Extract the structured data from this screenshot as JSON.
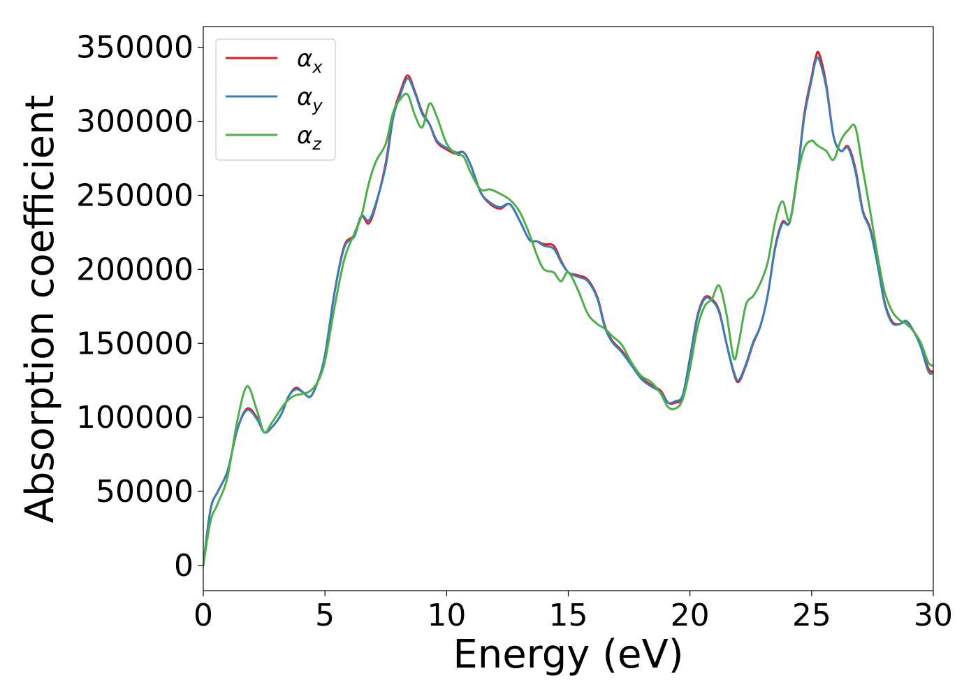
{
  "chart_data": {
    "type": "line",
    "title": "",
    "xlabel": "Energy (eV)",
    "ylabel": "Absorption coefficient",
    "xlim": [
      0,
      30
    ],
    "ylim": [
      -17000,
      364000
    ],
    "xticks": [
      0,
      5,
      10,
      15,
      20,
      25,
      30
    ],
    "yticks": [
      0,
      50000,
      100000,
      150000,
      200000,
      250000,
      300000,
      350000
    ],
    "grid": false,
    "legend": "top-left",
    "series": [
      {
        "name": "αx",
        "sym": "α",
        "sub": "x",
        "color": "#e41a1c",
        "x": [
          0,
          0.3,
          0.6,
          1.0,
          1.4,
          1.8,
          2.2,
          2.5,
          2.8,
          3.2,
          3.5,
          3.8,
          4.1,
          4.4,
          4.7,
          5.0,
          5.4,
          5.8,
          6.2,
          6.5,
          6.8,
          7.1,
          7.5,
          7.8,
          8.1,
          8.4,
          8.7,
          9.0,
          9.3,
          9.6,
          10.0,
          10.4,
          10.7,
          11.0,
          11.4,
          11.8,
          12.2,
          12.6,
          13.0,
          13.4,
          13.7,
          14.0,
          14.4,
          14.7,
          15.0,
          15.4,
          15.8,
          16.2,
          16.5,
          16.8,
          17.2,
          17.6,
          18.0,
          18.4,
          18.8,
          19.1,
          19.4,
          19.7,
          20.0,
          20.3,
          20.6,
          20.9,
          21.2,
          21.5,
          21.8,
          22.0,
          22.3,
          22.6,
          22.9,
          23.2,
          23.5,
          23.8,
          24.1,
          24.4,
          24.7,
          25.0,
          25.15,
          25.3,
          25.6,
          25.9,
          26.2,
          26.5,
          26.8,
          27.1,
          27.4,
          27.7,
          28.0,
          28.3,
          28.6,
          28.9,
          29.2,
          29.5,
          29.8,
          30.0
        ],
        "y": [
          0,
          38000,
          50000,
          64000,
          92000,
          106000,
          100000,
          90000,
          93000,
          102000,
          114000,
          120000,
          117000,
          114000,
          124000,
          142000,
          185000,
          216000,
          223000,
          236000,
          231000,
          244000,
          272000,
          304000,
          320000,
          331000,
          320000,
          306000,
          298000,
          286000,
          281000,
          278000,
          279000,
          270000,
          252000,
          244000,
          241000,
          244000,
          233000,
          220000,
          219000,
          217000,
          216000,
          206000,
          198000,
          196000,
          193000,
          181000,
          162000,
          152000,
          145000,
          136000,
          127000,
          122000,
          118000,
          110000,
          110000,
          114000,
          140000,
          168000,
          181000,
          180000,
          172000,
          150000,
          130000,
          124000,
          135000,
          150000,
          162000,
          183000,
          215000,
          232000,
          232000,
          262000,
          305000,
          330000,
          342000,
          346000,
          325000,
          290000,
          280000,
          283000,
          268000,
          240000,
          228000,
          205000,
          178000,
          165000,
          163000,
          165000,
          158000,
          148000,
          133000,
          131000
        ]
      },
      {
        "name": "αy",
        "sym": "α",
        "sub": "y",
        "color": "#377eb8",
        "x": [
          0,
          0.3,
          0.6,
          1.0,
          1.4,
          1.8,
          2.2,
          2.5,
          2.8,
          3.2,
          3.5,
          3.8,
          4.1,
          4.4,
          4.7,
          5.0,
          5.4,
          5.8,
          6.2,
          6.5,
          6.8,
          7.1,
          7.5,
          7.8,
          8.1,
          8.4,
          8.7,
          9.0,
          9.3,
          9.6,
          10.0,
          10.4,
          10.7,
          11.0,
          11.4,
          11.8,
          12.2,
          12.6,
          13.0,
          13.4,
          13.7,
          14.0,
          14.4,
          14.7,
          15.0,
          15.4,
          15.8,
          16.2,
          16.5,
          16.8,
          17.2,
          17.6,
          18.0,
          18.4,
          18.8,
          19.1,
          19.4,
          19.7,
          20.0,
          20.3,
          20.6,
          20.9,
          21.2,
          21.5,
          21.8,
          22.0,
          22.3,
          22.6,
          22.9,
          23.2,
          23.5,
          23.8,
          24.1,
          24.4,
          24.7,
          25.0,
          25.15,
          25.3,
          25.6,
          25.9,
          26.2,
          26.5,
          26.8,
          27.1,
          27.4,
          27.7,
          28.0,
          28.3,
          28.6,
          28.9,
          29.2,
          29.5,
          29.8,
          30.0
        ],
        "y": [
          0,
          38000,
          50000,
          64000,
          92000,
          105000,
          99000,
          90000,
          93000,
          102000,
          114000,
          119000,
          117000,
          114000,
          124000,
          142000,
          185000,
          215000,
          222000,
          236000,
          233000,
          245000,
          270000,
          302000,
          318000,
          329000,
          319000,
          305000,
          298000,
          287000,
          282000,
          279000,
          279000,
          270000,
          252000,
          245000,
          242000,
          244000,
          233000,
          220000,
          219000,
          216000,
          214000,
          205000,
          198000,
          195000,
          192000,
          180000,
          161000,
          151000,
          144000,
          135000,
          126000,
          121000,
          117000,
          110000,
          111000,
          115000,
          140000,
          167000,
          180000,
          179000,
          171000,
          150000,
          131000,
          125000,
          136000,
          151000,
          162000,
          183000,
          214000,
          231000,
          232000,
          262000,
          303000,
          328000,
          340000,
          342000,
          323000,
          290000,
          280000,
          282000,
          266000,
          239000,
          227000,
          204000,
          177000,
          164000,
          163000,
          165000,
          158000,
          147000,
          131000,
          130000
        ]
      },
      {
        "name": "αz",
        "sym": "α",
        "sub": "z",
        "color": "#4daf4a",
        "x": [
          0,
          0.3,
          0.6,
          1.0,
          1.4,
          1.8,
          2.2,
          2.5,
          2.8,
          3.2,
          3.5,
          3.8,
          4.1,
          4.4,
          4.7,
          5.0,
          5.4,
          5.8,
          6.2,
          6.5,
          6.8,
          7.1,
          7.5,
          7.8,
          8.1,
          8.4,
          8.7,
          9.0,
          9.3,
          9.6,
          10.0,
          10.4,
          10.7,
          11.0,
          11.4,
          11.8,
          12.2,
          12.6,
          13.0,
          13.4,
          13.7,
          14.0,
          14.4,
          14.7,
          15.0,
          15.4,
          15.8,
          16.2,
          16.5,
          16.8,
          17.2,
          17.6,
          18.0,
          18.4,
          18.8,
          19.1,
          19.4,
          19.7,
          20.0,
          20.3,
          20.6,
          20.9,
          21.2,
          21.5,
          21.8,
          22.0,
          22.3,
          22.6,
          22.9,
          23.2,
          23.5,
          23.8,
          24.1,
          24.4,
          24.7,
          25.0,
          25.15,
          25.3,
          25.6,
          25.9,
          26.2,
          26.5,
          26.8,
          27.1,
          27.4,
          27.7,
          28.0,
          28.3,
          28.6,
          28.9,
          29.2,
          29.5,
          29.8,
          30.0
        ],
        "y": [
          0,
          30000,
          42000,
          60000,
          98000,
          121000,
          105000,
          90000,
          96000,
          106000,
          112000,
          115000,
          116000,
          118000,
          124000,
          138000,
          175000,
          207000,
          224000,
          236000,
          258000,
          273000,
          285000,
          306000,
          315000,
          318000,
          304000,
          296000,
          312000,
          303000,
          285000,
          278000,
          276000,
          265000,
          254000,
          254000,
          251000,
          247000,
          239000,
          224000,
          210000,
          200000,
          198000,
          192000,
          198000,
          186000,
          170000,
          163000,
          160000,
          155000,
          149000,
          137000,
          128000,
          124000,
          116000,
          107000,
          106000,
          112000,
          133000,
          160000,
          175000,
          180000,
          189000,
          170000,
          140000,
          150000,
          176000,
          182000,
          191000,
          205000,
          232000,
          246000,
          233000,
          262000,
          282000,
          287000,
          285000,
          283000,
          280000,
          274000,
          287000,
          294000,
          296000,
          268000,
          240000,
          210000,
          185000,
          172000,
          166000,
          163000,
          158000,
          150000,
          137000,
          135000
        ]
      }
    ]
  }
}
